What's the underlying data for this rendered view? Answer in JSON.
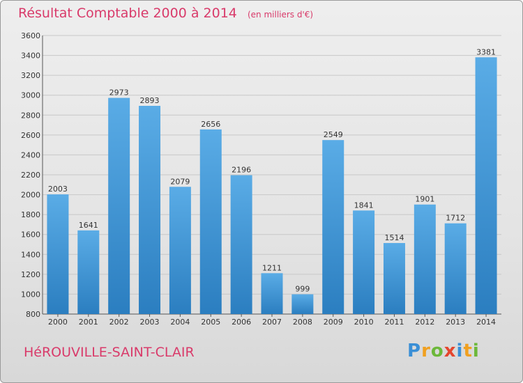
{
  "header": {
    "title": "Résultat Comptable 2000 à 2014",
    "subtitle": "(en milliers d'€)"
  },
  "footer": {
    "commune": "HéROUVILLE-SAINT-CLAIR",
    "logo_text": "Proxiti"
  },
  "colors": {
    "accent_text": "#d93a6a",
    "bar_top": "#5aace6",
    "bar_bottom": "#2b7ec0",
    "grid": "#c8c8c8"
  },
  "chart_data": {
    "type": "bar",
    "categories": [
      "2000",
      "2001",
      "2002",
      "2003",
      "2004",
      "2005",
      "2006",
      "2007",
      "2008",
      "2009",
      "2010",
      "2011",
      "2012",
      "2013",
      "2014"
    ],
    "values": [
      2003,
      1641,
      2973,
      2893,
      2079,
      2656,
      2196,
      1211,
      999,
      2549,
      1841,
      1514,
      1901,
      1712,
      3381
    ],
    "title": "Résultat Comptable 2000 à 2014",
    "subtitle": "(en milliers d'€)",
    "xlabel": "",
    "ylabel": "",
    "ylim": [
      800,
      3600
    ],
    "yticks": [
      800,
      1000,
      1200,
      1400,
      1600,
      1800,
      2000,
      2200,
      2400,
      2600,
      2800,
      3000,
      3200,
      3400,
      3600
    ],
    "grid": true,
    "data_labels": true
  }
}
